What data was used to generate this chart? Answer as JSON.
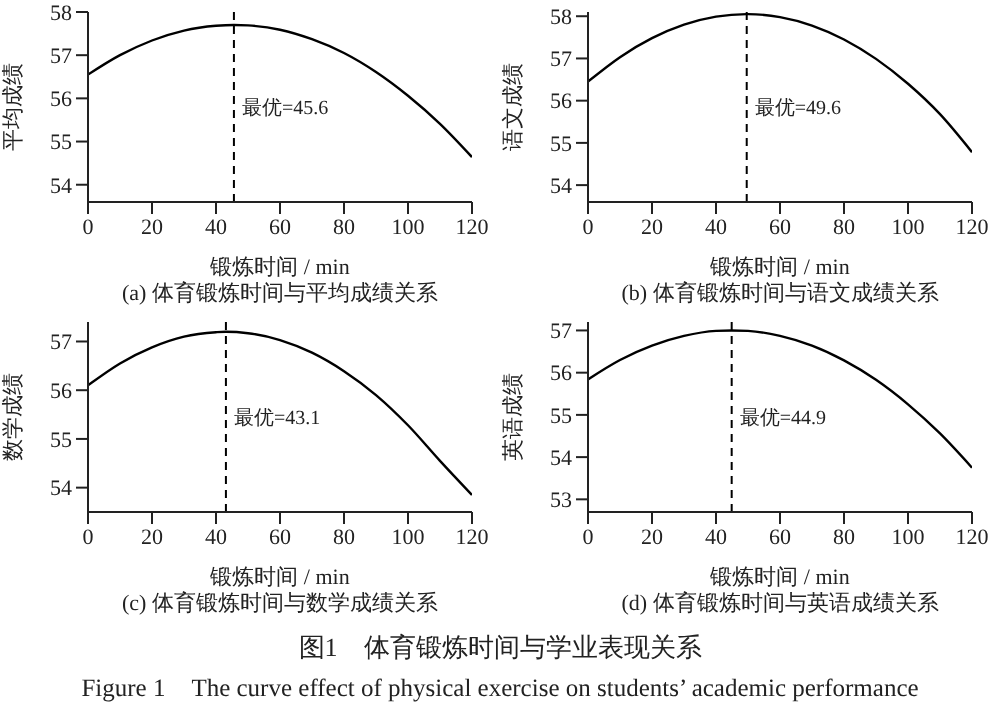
{
  "chart_data": [
    {
      "type": "line",
      "title": "(a) 体育锻炼时间与平均成绩关系",
      "xlabel": "锻炼时间 / min",
      "ylabel": "平均成绩",
      "xlim": [
        0,
        120
      ],
      "xticks": [
        0,
        20,
        40,
        60,
        80,
        100,
        120
      ],
      "ylim": [
        53.6,
        58
      ],
      "yticks": [
        54,
        55,
        56,
        57,
        58
      ],
      "grid": false,
      "marker": "none",
      "line_style": "solid",
      "series": [
        {
          "color": "#000000",
          "x": [
            0,
            10,
            20,
            30,
            40,
            45.6,
            50,
            60,
            70,
            80,
            90,
            100,
            110,
            120
          ],
          "values": [
            56.55,
            57.0,
            57.34,
            57.57,
            57.68,
            57.7,
            57.69,
            57.59,
            57.37,
            57.05,
            56.61,
            56.06,
            55.41,
            54.64
          ]
        }
      ],
      "ref_lines": [
        {
          "axis": "x",
          "value": 45.6,
          "label": "最优=45.6",
          "line_style": "dashed",
          "color": "#000000"
        }
      ]
    },
    {
      "type": "line",
      "title": "(b) 体育锻炼时间与语文成绩关系",
      "xlabel": "锻炼时间 / min",
      "ylabel": "语文成绩",
      "xlim": [
        0,
        120
      ],
      "xticks": [
        0,
        20,
        40,
        60,
        80,
        100,
        120
      ],
      "ylim": [
        53.6,
        58.1
      ],
      "yticks": [
        54,
        55,
        56,
        57,
        58
      ],
      "grid": false,
      "marker": "none",
      "line_style": "solid",
      "series": [
        {
          "color": "#000000",
          "x": [
            0,
            10,
            20,
            30,
            40,
            49.6,
            50,
            60,
            70,
            80,
            90,
            100,
            110,
            120
          ],
          "values": [
            56.45,
            57.03,
            57.48,
            57.8,
            57.99,
            58.05,
            58.05,
            57.98,
            57.78,
            57.45,
            56.99,
            56.4,
            55.68,
            54.78
          ]
        }
      ],
      "ref_lines": [
        {
          "axis": "x",
          "value": 49.6,
          "label": "最优=49.6",
          "line_style": "dashed",
          "color": "#000000"
        }
      ]
    },
    {
      "type": "line",
      "title": "(c) 体育锻炼时间与数学成绩关系",
      "xlabel": "锻炼时间 / min",
      "ylabel": "数学成绩",
      "xlim": [
        0,
        120
      ],
      "xticks": [
        0,
        20,
        40,
        60,
        80,
        100,
        120
      ],
      "ylim": [
        53.5,
        57.4
      ],
      "yticks": [
        54,
        55,
        56,
        57
      ],
      "grid": false,
      "marker": "none",
      "line_style": "solid",
      "series": [
        {
          "color": "#000000",
          "x": [
            0,
            10,
            20,
            30,
            40,
            43.1,
            50,
            60,
            70,
            80,
            90,
            100,
            110,
            120
          ],
          "values": [
            56.1,
            56.55,
            56.88,
            57.1,
            57.19,
            57.2,
            57.17,
            57.03,
            56.77,
            56.39,
            55.9,
            55.28,
            54.55,
            53.85
          ]
        }
      ],
      "ref_lines": [
        {
          "axis": "x",
          "value": 43.1,
          "label": "最优=43.1",
          "line_style": "dashed",
          "color": "#000000"
        }
      ]
    },
    {
      "type": "line",
      "title": "(d) 体育锻炼时间与英语成绩关系",
      "xlabel": "锻炼时间 / min",
      "ylabel": "英语成绩",
      "xlim": [
        0,
        120
      ],
      "xticks": [
        0,
        20,
        40,
        60,
        80,
        100,
        120
      ],
      "ylim": [
        52.7,
        57.2
      ],
      "yticks": [
        53,
        54,
        55,
        56,
        57
      ],
      "grid": false,
      "marker": "none",
      "line_style": "solid",
      "series": [
        {
          "color": "#000000",
          "x": [
            0,
            10,
            20,
            30,
            40,
            44.9,
            50,
            60,
            70,
            80,
            90,
            100,
            110,
            120
          ],
          "values": [
            55.84,
            56.3,
            56.64,
            56.87,
            56.99,
            57.0,
            56.99,
            56.87,
            56.64,
            56.29,
            55.83,
            55.25,
            54.56,
            53.75
          ]
        }
      ],
      "ref_lines": [
        {
          "axis": "x",
          "value": 44.9,
          "label": "最优=44.9",
          "line_style": "dashed",
          "color": "#000000"
        }
      ],
      "annotations": [
        "图1　体育锻炼时间与学业表现关系",
        "Figure 1　The curve effect of physical exercise on students’ academic performance"
      ]
    }
  ]
}
